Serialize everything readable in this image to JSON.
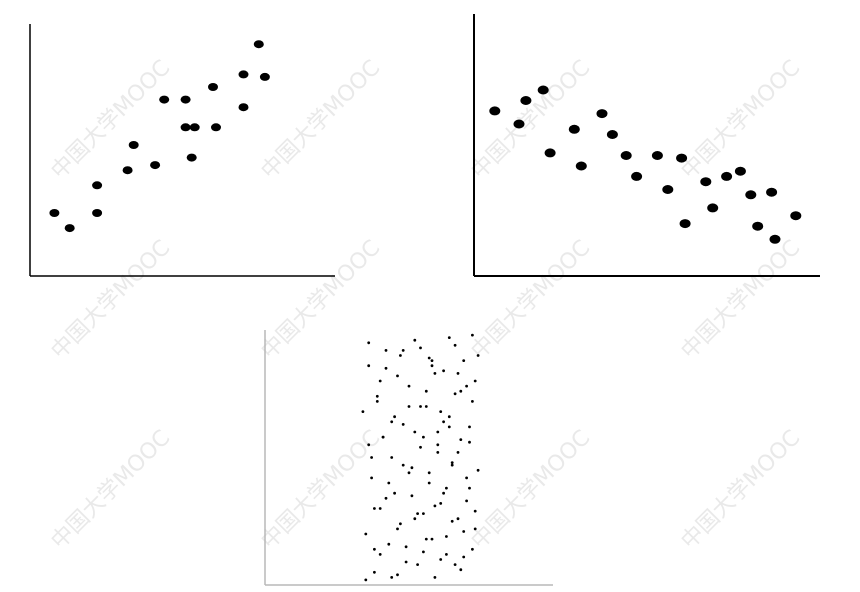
{
  "watermark": {
    "text": "中国大学MOOC",
    "color": "#e6e6e6"
  },
  "chart_data": [
    {
      "type": "scatter",
      "name": "positive-correlation",
      "xlim": [
        0,
        100
      ],
      "ylim": [
        0,
        100
      ],
      "grid": false,
      "marker_color": "#000000",
      "axis_color": "#000000",
      "x": [
        8,
        13,
        22,
        22,
        32,
        34,
        41,
        44,
        51,
        51,
        53,
        54,
        60,
        61,
        70,
        70,
        75,
        77
      ],
      "y": [
        25,
        19,
        36,
        25,
        42,
        52,
        44,
        70,
        70,
        59,
        47,
        59,
        75,
        59,
        67,
        80,
        92,
        79
      ]
    },
    {
      "type": "scatter",
      "name": "negative-correlation",
      "xlim": [
        0,
        100
      ],
      "ylim": [
        0,
        100
      ],
      "grid": false,
      "marker_color": "#000000",
      "axis_color": "#000000",
      "x": [
        6,
        13,
        15,
        20,
        22,
        29,
        31,
        37,
        40,
        44,
        47,
        53,
        56,
        60,
        61,
        67,
        69,
        73,
        77,
        80,
        82,
        86,
        87,
        93
      ],
      "y": [
        63,
        58,
        67,
        71,
        47,
        56,
        42,
        62,
        54,
        46,
        38,
        46,
        33,
        45,
        20,
        36,
        26,
        38,
        40,
        31,
        19,
        32,
        14,
        23
      ]
    },
    {
      "type": "scatter",
      "name": "no-correlation-narrow",
      "xlim": [
        0,
        100
      ],
      "ylim": [
        0,
        100
      ],
      "grid": false,
      "marker_color": "#000000",
      "axis_color": "#b8b8b8",
      "x": [
        35,
        36,
        37,
        38,
        39,
        40,
        41,
        42,
        43,
        44,
        45,
        46,
        47,
        48,
        49,
        50,
        51,
        52,
        53,
        54,
        55,
        56,
        57,
        58,
        59,
        60,
        61,
        62,
        63,
        64,
        65,
        66,
        67,
        68,
        69,
        70,
        71,
        72,
        73,
        74,
        34,
        35,
        36,
        37,
        38,
        39,
        40,
        41,
        42,
        43,
        44,
        45,
        46,
        47,
        48,
        49,
        50,
        51,
        52,
        53,
        54,
        55,
        56,
        57,
        58,
        59,
        60,
        61,
        62,
        63,
        64,
        65,
        66,
        67,
        68,
        69,
        70,
        71,
        72,
        73,
        74,
        36,
        38,
        40,
        42,
        44,
        46,
        48,
        50,
        52,
        54,
        56,
        58,
        60,
        62,
        64,
        66,
        68,
        70,
        72,
        73,
        71,
        69,
        67,
        65,
        63,
        61,
        59,
        57,
        55
      ],
      "y": [
        2,
        95,
        50,
        30,
        72,
        12,
        58,
        85,
        40,
        3,
        66,
        22,
        90,
        47,
        15,
        78,
        35,
        60,
        8,
        93,
        28,
        70,
        44,
        18,
        83,
        55,
        10,
        64,
        38,
        97,
        25,
        75,
        52,
        6,
        88,
        33,
        62,
        14,
        80,
        45,
        68,
        20,
        86,
        42,
        5,
        74,
        30,
        58,
        92,
        16,
        50,
        36,
        82,
        24,
        63,
        9,
        70,
        46,
        96,
        28,
        54,
        13,
        76,
        40,
        88,
        3,
        60,
        32,
        84,
        19,
        66,
        48,
        94,
        26,
        57,
        11,
        78,
        38,
        72,
        22,
        90,
        55,
        14,
        80,
        34,
        64,
        4,
        92,
        44,
        26,
        70,
        18,
        86,
        52,
        36,
        62,
        8,
        76,
        42,
        98,
        29,
        56,
        21,
        83,
        47,
        12,
        68,
        31,
        89,
        58
      ]
    }
  ]
}
